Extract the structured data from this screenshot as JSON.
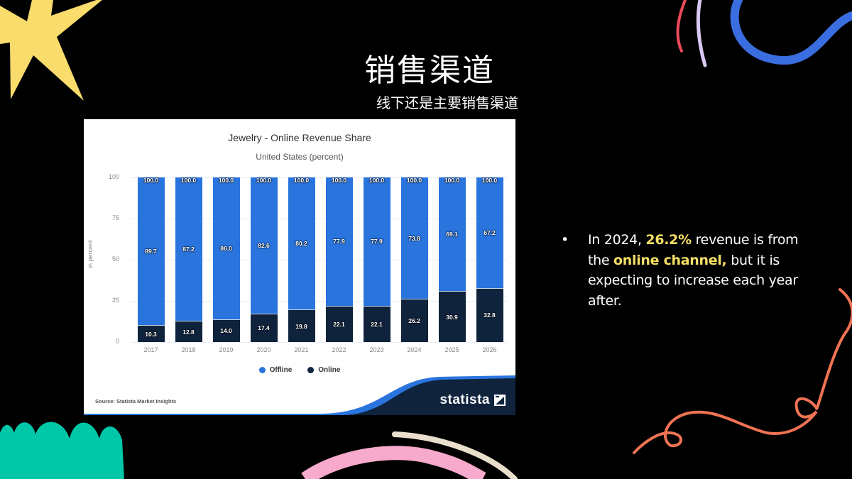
{
  "slide": {
    "title": "销售渠道",
    "subtitle": "线下还是主要销售渠道",
    "bullet": {
      "prefix": "In 2024, ",
      "highlight1": "26.2%",
      "mid1": " revenue is from the ",
      "highlight2": "online channel,",
      "suffix": " but it is expecting to increase each year after."
    },
    "colors": {
      "background": "#000000",
      "highlight": "#f5de66",
      "star": "#f9dc6b",
      "teal": "#00c7a8",
      "blue_swirl": "#3a6ee0",
      "coral": "#f07354",
      "pink": "#f7aacb"
    }
  },
  "chart_card": {
    "title": "Jewelry - Online Revenue Share",
    "subtitle": "United States (percent)",
    "ylabel": "in percent",
    "yticks": [
      "100",
      "75",
      "50",
      "25",
      "0"
    ],
    "legend": [
      {
        "label": "Offline",
        "color": "#2a74de"
      },
      {
        "label": "Online",
        "color": "#0f233d"
      }
    ],
    "source": "Source: Statista Market Insights",
    "brand": "statista"
  },
  "chart_data": {
    "type": "bar",
    "stacked": true,
    "title": "Jewelry - Online Revenue Share",
    "subtitle": "United States (percent)",
    "xlabel": "",
    "ylabel": "in percent",
    "ylim": [
      0,
      100
    ],
    "yticks": [
      0,
      25,
      50,
      75,
      100
    ],
    "grid": true,
    "legend_position": "bottom",
    "categories": [
      "2017",
      "2018",
      "2019",
      "2020",
      "2021",
      "2022",
      "2023",
      "2024",
      "2025",
      "2026"
    ],
    "series": [
      {
        "name": "Online",
        "color": "#0f233d",
        "values": [
          10.3,
          12.8,
          14.0,
          17.4,
          19.8,
          22.1,
          22.1,
          26.2,
          30.9,
          32.8
        ]
      },
      {
        "name": "Offline",
        "color": "#2a74de",
        "values": [
          89.7,
          87.2,
          86.0,
          82.6,
          80.2,
          77.9,
          77.9,
          73.8,
          69.1,
          67.2
        ]
      }
    ],
    "totals": [
      100.0,
      100.0,
      100.0,
      100.0,
      100.0,
      100.0,
      100.0,
      100.0,
      100.0,
      100.0
    ],
    "source": "Source: Statista Market Insights"
  }
}
